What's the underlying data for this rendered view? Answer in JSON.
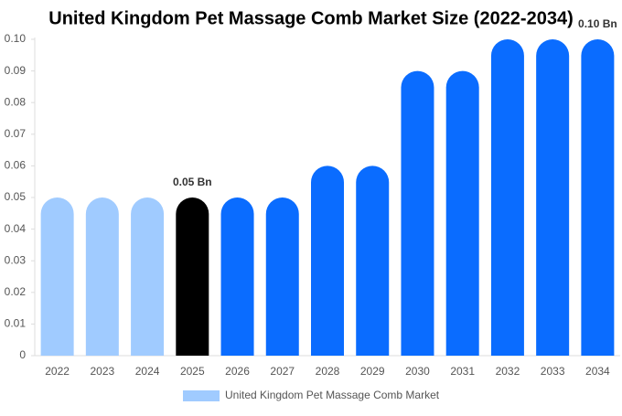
{
  "chart_data": {
    "type": "bar",
    "title": "United Kingdom Pet Massage Comb Market Size (2022-2034)",
    "categories": [
      "2022",
      "2023",
      "2024",
      "2025",
      "2026",
      "2027",
      "2028",
      "2029",
      "2030",
      "2031",
      "2032",
      "2033",
      "2034"
    ],
    "series": [
      {
        "name": "United Kingdom Pet Massage Comb Market",
        "color": "#a0cbff",
        "values": [
          0.05,
          0.05,
          0.05,
          0.05,
          0.05,
          0.05,
          0.06,
          0.06,
          0.09,
          0.09,
          0.1,
          0.1,
          0.1
        ],
        "colors": [
          "#a0cbff",
          "#a0cbff",
          "#a0cbff",
          "#000000",
          "#0a6cff",
          "#0a6cff",
          "#0a6cff",
          "#0a6cff",
          "#0a6cff",
          "#0a6cff",
          "#0a6cff",
          "#0a6cff",
          "#0a6cff"
        ],
        "value_labels": [
          null,
          null,
          null,
          "0.05 Bn",
          null,
          null,
          null,
          null,
          null,
          null,
          null,
          null,
          "0.10 Bn"
        ]
      }
    ],
    "ylim": [
      0,
      0.1
    ],
    "yticks": [
      0,
      0.01,
      0.02,
      0.03,
      0.04,
      0.05,
      0.06,
      0.07,
      0.08,
      0.09,
      {
        "value": 0.1,
        "label": "0.10"
      }
    ],
    "grid": false
  }
}
